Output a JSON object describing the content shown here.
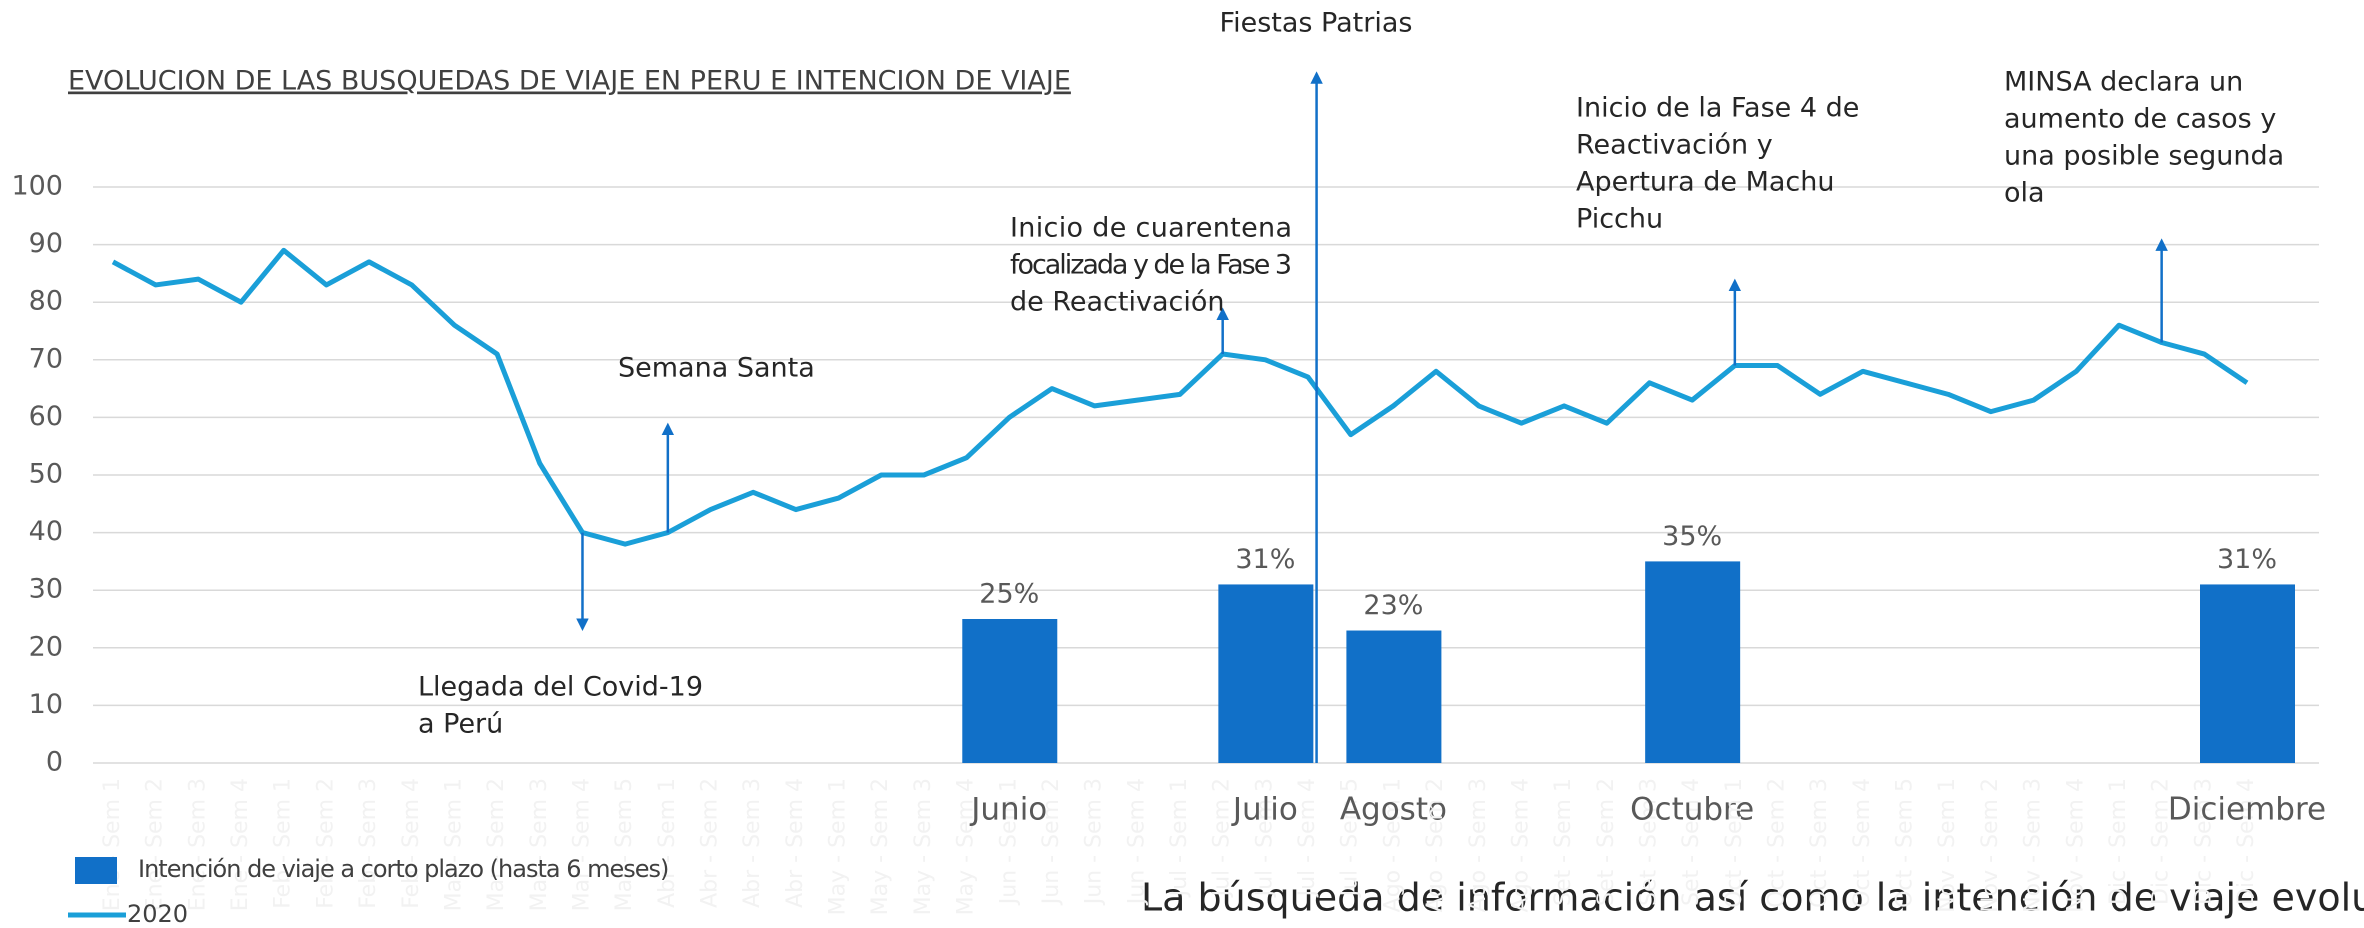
{
  "chart_data": {
    "type": "bar-line",
    "title": "EVOLUCION DE LAS BUSQUEDAS DE VIAJE EN PERU E INTENCION DE VIAJE",
    "categories": [
      "Ene - Sem 1",
      "Ene - Sem 2",
      "Ene - Sem 3",
      "Ene - Sem 4",
      "Feb - Sem 1",
      "Feb - Sem 2",
      "Feb - Sem 3",
      "Feb - Sem 4",
      "Mar - Sem 1",
      "Mar - Sem 2",
      "Mar - Sem 3",
      "Mar - Sem 4",
      "Mar - Sem 5",
      "Abr - Sem 1",
      "Abr - Sem 2",
      "Abr - Sem 3",
      "Abr - Sem 4",
      "May - Sem 1",
      "May - Sem 2",
      "May - Sem 3",
      "May - Sem 4",
      "Jun - Sem 1",
      "Jun - Sem 2",
      "Jun - Sem 3",
      "Jun - Sem 4",
      "Jul - Sem 1",
      "Jul - Sem 2",
      "Jul - Sem 3",
      "Jul - Sem 4",
      "Jul - Sem 5",
      "Ago - Sem 1",
      "Ago - Sem 2",
      "Ago - Sem 3",
      "Ago - Sem 4",
      "Set - Sem 1",
      "Set - Sem 2",
      "Set - Sem 3",
      "Set - Sem 4",
      "Oct - Sem 1",
      "Oct - Sem 2",
      "Oct - Sem 3",
      "Oct - Sem 4",
      "Oct - Sem 5",
      "Nov - Sem 1",
      "Nov - Sem 2",
      "Nov - Sem 3",
      "Nov - Sem 4",
      "Dic - Sem 1",
      "Dic - Sem 2",
      "Dic - Sem 3",
      "Dic - Sem 4"
    ],
    "month_labels": [
      null,
      null,
      null,
      null,
      null,
      null,
      null,
      null,
      null,
      null,
      null,
      null,
      null,
      null,
      null,
      null,
      null,
      null,
      null,
      null,
      null,
      "Junio",
      null,
      null,
      null,
      null,
      null,
      "Julio",
      null,
      null,
      "Agosto",
      null,
      null,
      null,
      null,
      null,
      null,
      "Octubre",
      null,
      null,
      null,
      null,
      null,
      null,
      null,
      null,
      null,
      null,
      null,
      null,
      "Diciembre"
    ],
    "series": [
      {
        "name": "Intención de viaje a corto plazo (hasta 6 meses)",
        "type": "bar",
        "color": "#1170c8",
        "values": [
          null,
          null,
          null,
          null,
          null,
          null,
          null,
          null,
          null,
          null,
          null,
          null,
          null,
          null,
          null,
          null,
          null,
          null,
          null,
          null,
          null,
          25,
          null,
          null,
          null,
          null,
          null,
          31,
          null,
          null,
          23,
          null,
          null,
          null,
          null,
          null,
          null,
          35,
          null,
          null,
          null,
          null,
          null,
          null,
          null,
          null,
          null,
          null,
          null,
          null,
          31
        ],
        "value_labels": [
          null,
          null,
          null,
          null,
          null,
          null,
          null,
          null,
          null,
          null,
          null,
          null,
          null,
          null,
          null,
          null,
          null,
          null,
          null,
          null,
          null,
          "25%",
          null,
          null,
          null,
          null,
          null,
          "31%",
          null,
          null,
          "23%",
          null,
          null,
          null,
          null,
          null,
          null,
          "35%",
          null,
          null,
          null,
          null,
          null,
          null,
          null,
          null,
          null,
          null,
          null,
          null,
          "31%"
        ]
      },
      {
        "name": "2020",
        "type": "line",
        "color": "#1a9fd8",
        "values": [
          87,
          83,
          84,
          80,
          89,
          83,
          87,
          83,
          76,
          71,
          52,
          40,
          38,
          40,
          44,
          47,
          44,
          46,
          50,
          50,
          53,
          60,
          65,
          62,
          63,
          64,
          71,
          70,
          67,
          57,
          62,
          68,
          62,
          59,
          62,
          59,
          66,
          63,
          69,
          69,
          64,
          68,
          66,
          64,
          61,
          63,
          68,
          76,
          73,
          71,
          66
        ]
      }
    ],
    "ylim": [
      0,
      100
    ],
    "yticks": [
      0,
      10,
      20,
      30,
      40,
      50,
      60,
      70,
      80,
      90,
      100
    ],
    "grid": true,
    "annotations": [
      {
        "lines": [
          "Llegada del Covid-19",
          "a Perú"
        ]
      },
      {
        "lines": [
          "Semana Santa"
        ]
      },
      {
        "lines": [
          "Inicio de cuarentena",
          "focalizada y de la Fase 3",
          "de Reactivación"
        ]
      },
      {
        "lines": [
          "Fiestas Patrias"
        ]
      },
      {
        "lines": [
          "Inicio de la Fase 4 de",
          "Reactivación y",
          "Apertura de Machu",
          "Picchu"
        ]
      },
      {
        "lines": [
          "MINSA declara un",
          "aumento de casos y",
          "una posible segunda",
          "ola"
        ]
      }
    ],
    "footer": "La búsqueda de información así como la intención de viaje evolucionan con la"
  }
}
